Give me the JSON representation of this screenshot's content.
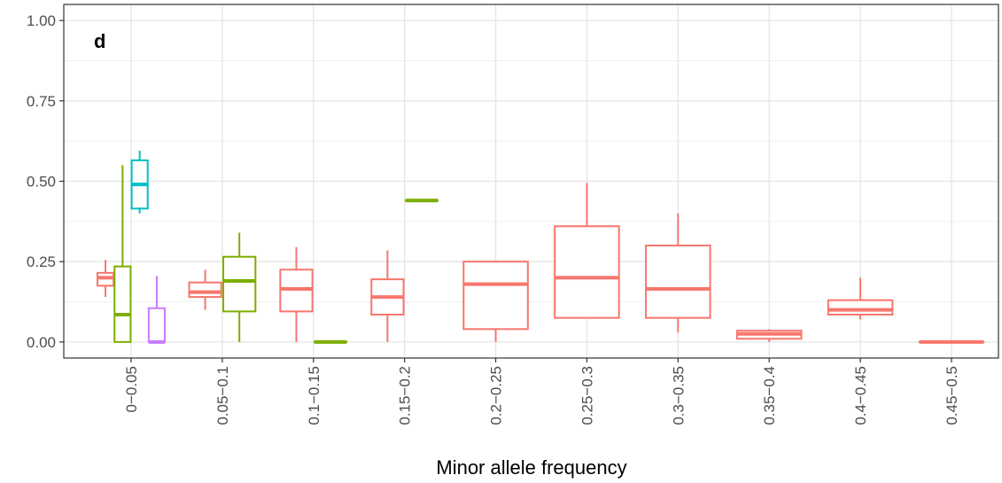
{
  "chart_data": {
    "type": "box",
    "annotation": "d",
    "xlabel": "Minor allele frequency",
    "categories": [
      "0−0.05",
      "0.05−0.1",
      "0.1−0.15",
      "0.15−0.2",
      "0.2−0.25",
      "0.25−0.3",
      "0.3−0.35",
      "0.35−0.4",
      "0.4−0.45",
      "0.45−0.5"
    ],
    "ylim": [
      -0.05,
      1.05
    ],
    "yticks": [
      {
        "value": 0,
        "label": "0.00"
      },
      {
        "value": 0.25,
        "label": "0.25"
      },
      {
        "value": 0.5,
        "label": "0.50"
      },
      {
        "value": 0.75,
        "label": "0.75"
      },
      {
        "value": 1,
        "label": "1.00"
      }
    ],
    "y_minor_grid": [
      0.125,
      0.375,
      0.625,
      0.875
    ],
    "grid": true,
    "series": [
      {
        "color": "#F8766D",
        "boxes": [
          [
            0.14,
            0.175,
            0.2,
            0.215,
            0.255
          ],
          [
            0.1,
            0.14,
            0.155,
            0.185,
            0.225
          ],
          [
            0,
            0.095,
            0.165,
            0.225,
            0.295
          ],
          [
            0,
            0.085,
            0.14,
            0.195,
            0.285
          ],
          [
            0,
            0.04,
            0.18,
            0.25,
            0.25
          ],
          [
            0.075,
            0.075,
            0.2,
            0.36,
            0.495
          ],
          [
            0.03,
            0.075,
            0.165,
            0.3,
            0.4
          ],
          [
            0,
            0.01,
            0.025,
            0.035,
            0.04
          ],
          [
            0.07,
            0.085,
            0.1,
            0.13,
            0.2
          ],
          [
            0,
            0,
            0,
            0,
            0
          ]
        ]
      },
      {
        "color": "#7CAE00",
        "boxes": [
          [
            0,
            0,
            0.085,
            0.235,
            0.55
          ],
          [
            0,
            0.095,
            0.19,
            0.265,
            0.34
          ],
          [
            0,
            0,
            0,
            0,
            0
          ],
          [
            0.44,
            0.44,
            0.44,
            0.44,
            0.44
          ],
          null,
          null,
          null,
          null,
          null,
          null
        ]
      },
      {
        "color": "#00BFC4",
        "boxes": [
          [
            0.4,
            0.415,
            0.49,
            0.565,
            0.595
          ],
          null,
          null,
          null,
          null,
          null,
          null,
          null,
          null,
          null
        ]
      },
      {
        "color": "#C77CFF",
        "boxes": [
          [
            0,
            0,
            0,
            0.105,
            0.205
          ],
          null,
          null,
          null,
          null,
          null,
          null,
          null,
          null,
          null
        ]
      }
    ]
  }
}
